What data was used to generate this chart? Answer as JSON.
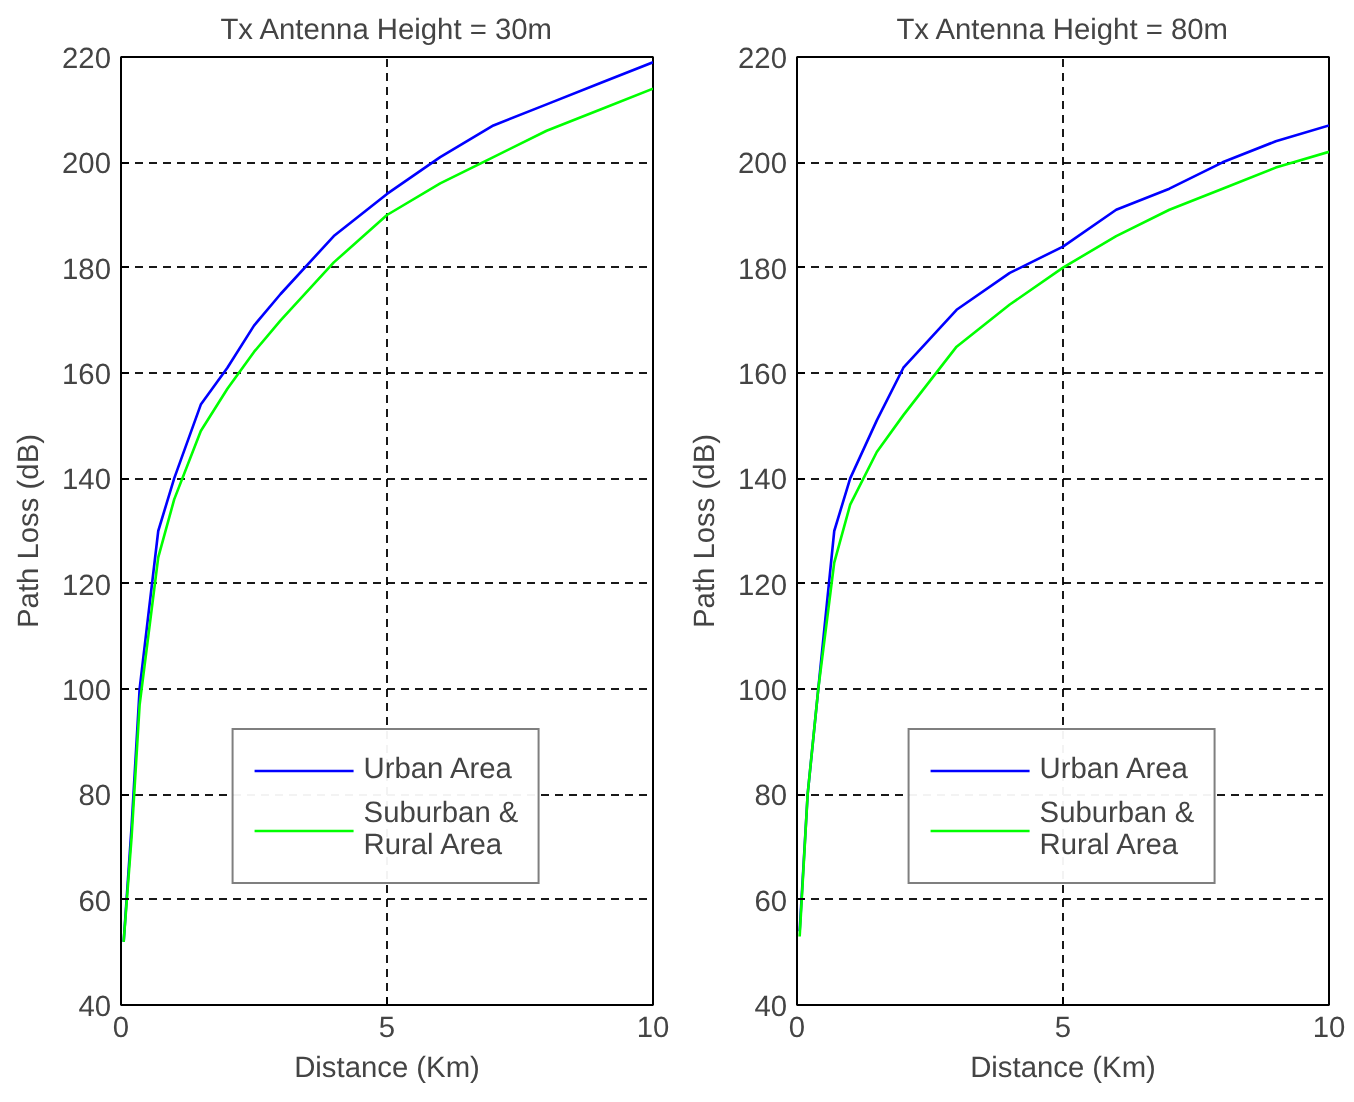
{
  "chart_data": [
    {
      "type": "line",
      "title": "Tx Antenna Height = 30m",
      "xlabel": "Distance (Km)",
      "ylabel": "Path Loss (dB)",
      "xlim": [
        0,
        10
      ],
      "xticks": [
        0,
        5,
        10
      ],
      "ylim": [
        40,
        220
      ],
      "yticks": [
        40,
        60,
        80,
        100,
        120,
        140,
        160,
        180,
        200,
        220
      ],
      "grid": true,
      "legend": "bottom",
      "line_style": "solid",
      "marker": "none",
      "x": [
        0.05,
        0.2,
        0.35,
        0.7,
        1,
        1.5,
        2,
        2.5,
        3,
        4,
        5,
        6,
        7,
        8,
        9,
        10
      ],
      "series": [
        {
          "name": "Urban Area",
          "color": "#0000ff",
          "values": [
            52,
            74,
            100,
            130,
            140,
            154,
            161,
            169,
            175,
            186,
            194,
            201,
            207,
            211,
            215,
            219
          ]
        },
        {
          "name": "Suburban & Rural Area",
          "color": "#00ff00",
          "values": [
            52,
            72,
            97,
            125,
            136,
            149,
            157,
            164,
            170,
            181,
            190,
            196,
            201,
            206,
            210,
            214
          ]
        }
      ]
    },
    {
      "type": "line",
      "title": "Tx Antenna Height = 80m",
      "xlabel": "Distance (Km)",
      "ylabel": "Path Loss (dB)",
      "xlim": [
        0,
        10
      ],
      "xticks": [
        0,
        5,
        10
      ],
      "ylim": [
        40,
        220
      ],
      "yticks": [
        40,
        60,
        80,
        100,
        120,
        140,
        160,
        180,
        200,
        220
      ],
      "grid": true,
      "legend": "bottom",
      "line_style": "solid",
      "marker": "none",
      "x": [
        0.05,
        0.2,
        0.4,
        0.7,
        1,
        1.5,
        2,
        3,
        4,
        5,
        6,
        7,
        8,
        9,
        10
      ],
      "series": [
        {
          "name": "Urban Area",
          "color": "#0000ff",
          "values": [
            54,
            80,
            100,
            130,
            140,
            151,
            161,
            172,
            179,
            184,
            191,
            195,
            200,
            204,
            207
          ]
        },
        {
          "name": "Suburban & Rural Area",
          "color": "#00ff00",
          "values": [
            53,
            80,
            100,
            124,
            135,
            145,
            152,
            165,
            173,
            180,
            186,
            191,
            195,
            199,
            202
          ]
        }
      ]
    }
  ]
}
